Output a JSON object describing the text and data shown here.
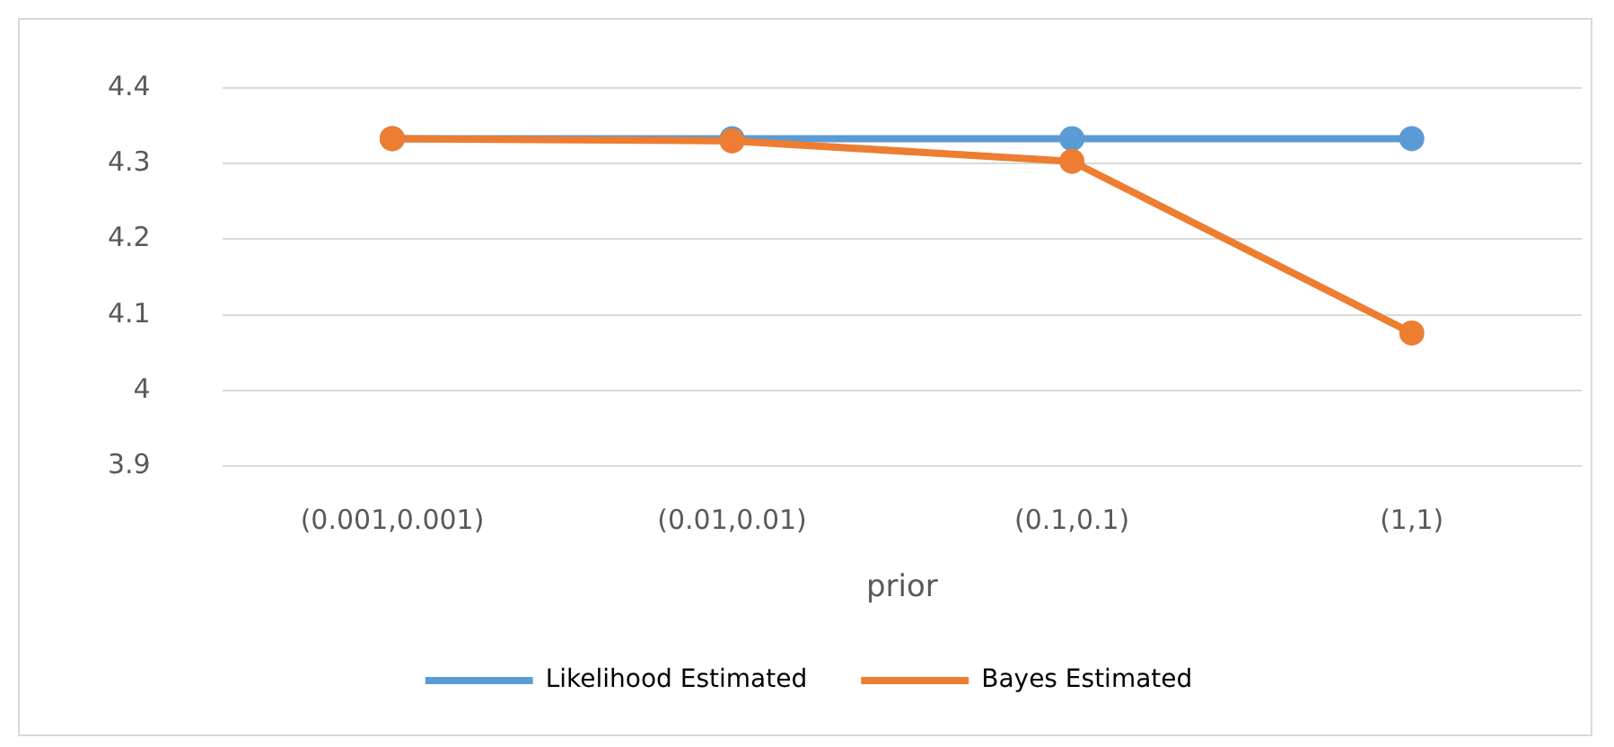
{
  "chart_data": {
    "type": "line",
    "xlabel": "prior",
    "categories": [
      "(0.001,0.001)",
      "(0.01,0.01)",
      "(0.1,0.1)",
      "(1,1)"
    ],
    "series": [
      {
        "name": "Likelihood Estimated",
        "color": "#5b9bd5",
        "values": [
          4.333,
          4.333,
          4.333,
          4.333
        ]
      },
      {
        "name": "Bayes Estimated",
        "color": "#ed7d31",
        "values": [
          4.333,
          4.33,
          4.303,
          4.076
        ]
      }
    ],
    "ylim": [
      3.9,
      4.4
    ],
    "yticks": [
      3.9,
      4,
      4.1,
      4.2,
      4.3,
      4.4
    ],
    "grid": "y",
    "legend": "bottom",
    "marker": "circle",
    "line_style": "solid"
  }
}
